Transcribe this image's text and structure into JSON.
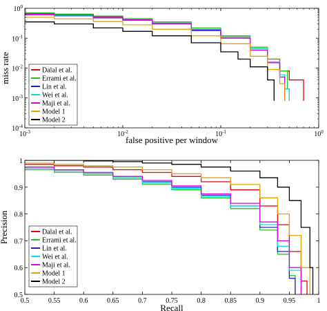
{
  "chart_data": [
    {
      "type": "line",
      "xlabel": "false positive per window",
      "ylabel": "miss rate",
      "xscale": "log",
      "yscale": "log",
      "xlim": [
        0.001,
        1
      ],
      "ylim": [
        0.0001,
        1
      ],
      "x_ticks": [
        0.001,
        0.01,
        0.1,
        1
      ],
      "x_tick_labels": [
        [
          "10",
          "-3"
        ],
        [
          "10",
          "-2"
        ],
        [
          "10",
          "-1"
        ],
        [
          "10",
          "0"
        ]
      ],
      "y_ticks": [
        1,
        0.1,
        0.01,
        0.001,
        0.0001
      ],
      "y_tick_labels": [
        [
          "10",
          "0"
        ],
        [
          "10",
          "-1"
        ],
        [
          "10",
          "-2"
        ],
        [
          "10",
          "-3"
        ],
        [
          "10",
          "-4"
        ]
      ],
      "legend_position": "bottom-left",
      "series": [
        {
          "name": "Dalal et al.",
          "color": "#e8000b",
          "points": [
            [
              0.001,
              0.66
            ],
            [
              0.002,
              0.62
            ],
            [
              0.005,
              0.52
            ],
            [
              0.01,
              0.42
            ],
            [
              0.02,
              0.32
            ],
            [
              0.05,
              0.2
            ],
            [
              0.1,
              0.11
            ],
            [
              0.2,
              0.045
            ],
            [
              0.3,
              0.02
            ],
            [
              0.4,
              0.008
            ],
            [
              0.5,
              0.004
            ],
            [
              0.6,
              0.004
            ],
            [
              0.7,
              0.0008
            ]
          ]
        },
        {
          "name": "Errami et al.",
          "color": "#22c322",
          "points": [
            [
              0.001,
              0.7
            ],
            [
              0.002,
              0.64
            ],
            [
              0.005,
              0.55
            ],
            [
              0.01,
              0.45
            ],
            [
              0.02,
              0.35
            ],
            [
              0.05,
              0.22
            ],
            [
              0.1,
              0.12
            ],
            [
              0.2,
              0.05
            ],
            [
              0.3,
              0.02
            ],
            [
              0.4,
              0.008
            ],
            [
              0.48,
              0.002
            ],
            [
              0.5,
              0.0008
            ]
          ]
        },
        {
          "name": "Lin et al.",
          "color": "#1f1fc8",
          "points": [
            [
              0.001,
              0.6
            ],
            [
              0.002,
              0.56
            ],
            [
              0.005,
              0.48
            ],
            [
              0.01,
              0.4
            ],
            [
              0.02,
              0.3
            ],
            [
              0.05,
              0.18
            ],
            [
              0.1,
              0.1
            ],
            [
              0.2,
              0.04
            ],
            [
              0.3,
              0.015
            ],
            [
              0.4,
              0.005
            ],
            [
              0.45,
              0.0008
            ]
          ]
        },
        {
          "name": "Wei et al.",
          "color": "#00e0e0",
          "points": [
            [
              0.001,
              0.62
            ],
            [
              0.002,
              0.58
            ],
            [
              0.005,
              0.5
            ],
            [
              0.01,
              0.42
            ],
            [
              0.02,
              0.32
            ],
            [
              0.05,
              0.2
            ],
            [
              0.1,
              0.11
            ],
            [
              0.2,
              0.045
            ],
            [
              0.3,
              0.016
            ],
            [
              0.4,
              0.006
            ],
            [
              0.45,
              0.002
            ],
            [
              0.5,
              0.0008
            ]
          ]
        },
        {
          "name": "Maji et al.",
          "color": "#e000e0",
          "points": [
            [
              0.001,
              0.64
            ],
            [
              0.002,
              0.6
            ],
            [
              0.005,
              0.5
            ],
            [
              0.01,
              0.41
            ],
            [
              0.02,
              0.31
            ],
            [
              0.05,
              0.19
            ],
            [
              0.1,
              0.1
            ],
            [
              0.2,
              0.04
            ],
            [
              0.3,
              0.015
            ],
            [
              0.4,
              0.005
            ],
            [
              0.45,
              0.0008
            ]
          ]
        },
        {
          "name": "Model 1",
          "color": "#e8a000",
          "points": [
            [
              0.001,
              0.5
            ],
            [
              0.002,
              0.44
            ],
            [
              0.005,
              0.36
            ],
            [
              0.01,
              0.28
            ],
            [
              0.02,
              0.2
            ],
            [
              0.05,
              0.12
            ],
            [
              0.1,
              0.065
            ],
            [
              0.2,
              0.025
            ],
            [
              0.3,
              0.009
            ],
            [
              0.4,
              0.003
            ],
            [
              0.45,
              0.0008
            ]
          ]
        },
        {
          "name": "Model 2",
          "color": "#000000",
          "points": [
            [
              0.001,
              0.35
            ],
            [
              0.002,
              0.3
            ],
            [
              0.005,
              0.22
            ],
            [
              0.01,
              0.17
            ],
            [
              0.02,
              0.12
            ],
            [
              0.05,
              0.07
            ],
            [
              0.1,
              0.035
            ],
            [
              0.15,
              0.02
            ],
            [
              0.2,
              0.011
            ],
            [
              0.3,
              0.004
            ],
            [
              0.35,
              0.0008
            ]
          ]
        }
      ]
    },
    {
      "type": "line",
      "xlabel": "Recall",
      "ylabel": "Precision",
      "xlim": [
        0.5,
        1
      ],
      "ylim": [
        0.5,
        1
      ],
      "x_ticks": [
        0.5,
        0.55,
        0.6,
        0.65,
        0.7,
        0.75,
        0.8,
        0.85,
        0.9,
        0.95,
        1
      ],
      "x_tick_labels": [
        "0.5",
        "0.55",
        "0.6",
        "0.65",
        "0.7",
        "0.75",
        "0.8",
        "0.85",
        "0.9",
        "0.95",
        "1"
      ],
      "y_ticks": [
        0.5,
        0.6,
        0.7,
        0.8,
        0.9,
        1
      ],
      "y_tick_labels": [
        "0.5",
        "0.6",
        "0.7",
        "0.8",
        "0.9",
        "1"
      ],
      "legend_position": "bottom-left",
      "series": [
        {
          "name": "Dalal et al.",
          "color": "#e8000b",
          "points": [
            [
              0.5,
              0.985
            ],
            [
              0.55,
              0.98
            ],
            [
              0.6,
              0.975
            ],
            [
              0.65,
              0.965
            ],
            [
              0.7,
              0.955
            ],
            [
              0.75,
              0.94
            ],
            [
              0.8,
              0.92
            ],
            [
              0.85,
              0.89
            ],
            [
              0.9,
              0.83
            ],
            [
              0.93,
              0.76
            ],
            [
              0.95,
              0.66
            ],
            [
              0.97,
              0.55
            ],
            [
              0.98,
              0.5
            ]
          ]
        },
        {
          "name": "Errami et al.",
          "color": "#22c322",
          "points": [
            [
              0.5,
              0.965
            ],
            [
              0.55,
              0.955
            ],
            [
              0.6,
              0.945
            ],
            [
              0.65,
              0.93
            ],
            [
              0.7,
              0.91
            ],
            [
              0.75,
              0.89
            ],
            [
              0.8,
              0.86
            ],
            [
              0.85,
              0.82
            ],
            [
              0.9,
              0.74
            ],
            [
              0.93,
              0.65
            ],
            [
              0.95,
              0.57
            ],
            [
              0.96,
              0.5
            ]
          ]
        },
        {
          "name": "Lin et al.",
          "color": "#1f1fc8",
          "points": [
            [
              0.5,
              0.975
            ],
            [
              0.55,
              0.965
            ],
            [
              0.6,
              0.955
            ],
            [
              0.65,
              0.94
            ],
            [
              0.7,
              0.92
            ],
            [
              0.75,
              0.9
            ],
            [
              0.8,
              0.87
            ],
            [
              0.85,
              0.83
            ],
            [
              0.9,
              0.75
            ],
            [
              0.93,
              0.66
            ],
            [
              0.95,
              0.56
            ],
            [
              0.96,
              0.5
            ]
          ]
        },
        {
          "name": "Wei et al.",
          "color": "#00e0e0",
          "points": [
            [
              0.5,
              0.97
            ],
            [
              0.55,
              0.96
            ],
            [
              0.6,
              0.95
            ],
            [
              0.65,
              0.935
            ],
            [
              0.7,
              0.915
            ],
            [
              0.75,
              0.895
            ],
            [
              0.8,
              0.865
            ],
            [
              0.85,
              0.83
            ],
            [
              0.9,
              0.76
            ],
            [
              0.93,
              0.68
            ],
            [
              0.95,
              0.59
            ],
            [
              0.97,
              0.5
            ]
          ]
        },
        {
          "name": "Maji et al.",
          "color": "#e000e0",
          "points": [
            [
              0.5,
              0.975
            ],
            [
              0.55,
              0.965
            ],
            [
              0.6,
              0.955
            ],
            [
              0.65,
              0.94
            ],
            [
              0.7,
              0.925
            ],
            [
              0.75,
              0.905
            ],
            [
              0.8,
              0.875
            ],
            [
              0.85,
              0.84
            ],
            [
              0.9,
              0.77
            ],
            [
              0.93,
              0.7
            ],
            [
              0.95,
              0.6
            ],
            [
              0.97,
              0.5
            ]
          ]
        },
        {
          "name": "Model 1",
          "color": "#e8a000",
          "points": [
            [
              0.5,
              0.99
            ],
            [
              0.55,
              0.985
            ],
            [
              0.6,
              0.98
            ],
            [
              0.65,
              0.975
            ],
            [
              0.7,
              0.965
            ],
            [
              0.75,
              0.95
            ],
            [
              0.8,
              0.935
            ],
            [
              0.85,
              0.91
            ],
            [
              0.9,
              0.86
            ],
            [
              0.93,
              0.8
            ],
            [
              0.95,
              0.72
            ],
            [
              0.97,
              0.6
            ],
            [
              0.985,
              0.5
            ]
          ]
        },
        {
          "name": "Model 2",
          "color": "#000000",
          "points": [
            [
              0.5,
              1
            ],
            [
              0.55,
              1
            ],
            [
              0.6,
              0.998
            ],
            [
              0.65,
              0.995
            ],
            [
              0.7,
              0.99
            ],
            [
              0.75,
              0.985
            ],
            [
              0.8,
              0.975
            ],
            [
              0.85,
              0.96
            ],
            [
              0.9,
              0.935
            ],
            [
              0.93,
              0.9
            ],
            [
              0.95,
              0.85
            ],
            [
              0.97,
              0.75
            ],
            [
              0.985,
              0.6
            ],
            [
              0.99,
              0.5
            ]
          ]
        }
      ]
    }
  ]
}
